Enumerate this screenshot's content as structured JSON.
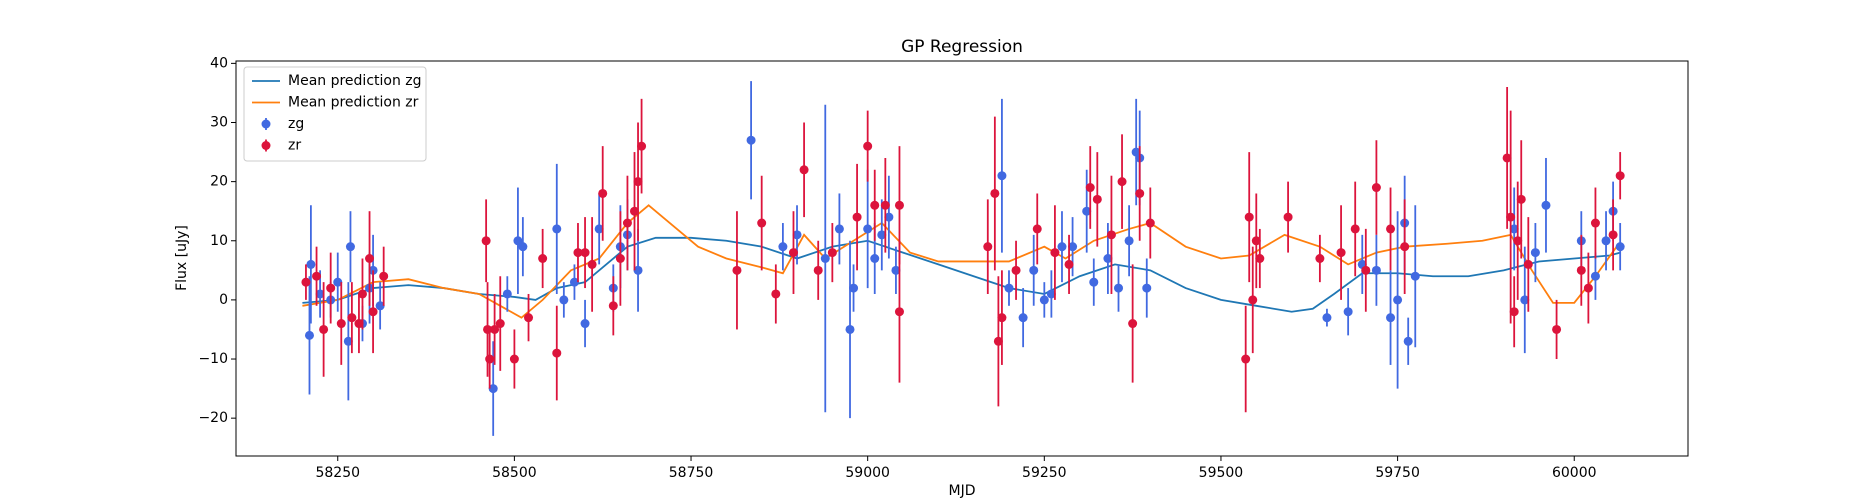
{
  "chart_data": {
    "type": "scatter",
    "title": "GP Regression",
    "x_label": "MJD",
    "y_label": "Flux [uJy]",
    "xlim": [
      58106,
      60161
    ],
    "ylim": [
      -26.4,
      40.4
    ],
    "xticks": [
      58250,
      58500,
      58750,
      59000,
      59250,
      59500,
      59750,
      60000
    ],
    "yticks": [
      {
        "value": -20,
        "label": "−20"
      },
      {
        "value": -10,
        "label": "−10"
      },
      0,
      10,
      20,
      30,
      40
    ],
    "legend": "upper left",
    "series": [
      {
        "name": "Mean prediction zg",
        "style": "line",
        "color": "#1f77b4",
        "x": [
          58200,
          58250,
          58300,
          58350,
          58400,
          58450,
          58500,
          58530,
          58560,
          58600,
          58630,
          58660,
          58700,
          58750,
          58800,
          58850,
          58900,
          58950,
          59000,
          59050,
          59100,
          59150,
          59200,
          59250,
          59300,
          59350,
          59400,
          59450,
          59500,
          59550,
          59600,
          59630,
          59660,
          59700,
          59750,
          59800,
          59850,
          59900,
          59950,
          60000,
          60050,
          60065
        ],
        "values": [
          -0.5,
          0,
          2,
          2.5,
          2,
          1,
          0.5,
          0,
          2,
          3,
          6,
          9,
          10.5,
          10.5,
          10,
          9,
          7,
          9,
          10,
          8,
          6,
          4,
          2,
          1,
          4,
          6,
          5,
          2,
          0,
          -1,
          -2,
          -1.5,
          1,
          4.5,
          4.5,
          4,
          4,
          5,
          6.5,
          7,
          7.5,
          8
        ]
      },
      {
        "name": "Mean prediction zr",
        "style": "line",
        "color": "#ff7f0e",
        "x": [
          58200,
          58250,
          58300,
          58350,
          58400,
          58450,
          58480,
          58510,
          58540,
          58580,
          58620,
          58660,
          58690,
          58720,
          58760,
          58800,
          58850,
          58880,
          58910,
          58940,
          58980,
          59020,
          59060,
          59100,
          59150,
          59200,
          59250,
          59280,
          59320,
          59370,
          59400,
          59450,
          59500,
          59540,
          59590,
          59640,
          59680,
          59720,
          59760,
          59820,
          59870,
          59910,
          59940,
          59970,
          60000,
          60030,
          60060
        ],
        "values": [
          -1,
          0,
          3,
          3.5,
          2,
          1,
          -1,
          -3,
          0,
          5,
          7,
          13,
          16,
          13,
          9,
          7,
          5.5,
          4.5,
          11,
          7,
          10,
          13,
          8,
          6.5,
          6.5,
          6.5,
          9,
          7,
          10,
          12,
          13,
          9,
          7,
          7.5,
          11,
          9,
          6,
          8,
          9,
          9.5,
          10,
          11,
          5,
          -0.5,
          -0.5,
          4,
          9
        ]
      },
      {
        "name": "zg",
        "style": "errorbar",
        "color": "#4169e1",
        "x": [
          58210,
          58212,
          58225,
          58240,
          58250,
          58265,
          58268,
          58285,
          58295,
          58300,
          58310,
          58470,
          58490,
          58505,
          58512,
          58560,
          58570,
          58585,
          58600,
          58620,
          58640,
          58650,
          58660,
          58675,
          58835,
          58880,
          58900,
          58940,
          58960,
          58975,
          58980,
          59000,
          59010,
          59020,
          59030,
          59040,
          59190,
          59200,
          59220,
          59235,
          59250,
          59260,
          59275,
          59290,
          59310,
          59320,
          59340,
          59355,
          59370,
          59380,
          59385,
          59395,
          59650,
          59680,
          59700,
          59720,
          59740,
          59750,
          59760,
          59765,
          59775,
          59915,
          59930,
          59945,
          59960,
          60010,
          60030,
          60045,
          60055,
          60065
        ],
        "values": [
          -6,
          6,
          1,
          0,
          3,
          -7,
          9,
          -4,
          2,
          5,
          -1,
          -15,
          1,
          10,
          9,
          12,
          0,
          3,
          -4,
          12,
          2,
          9,
          11,
          5,
          27,
          9,
          11,
          7,
          12,
          -5,
          2,
          12,
          7,
          11,
          14,
          5,
          21,
          2,
          -3,
          5,
          0,
          1,
          9,
          9,
          15,
          3,
          7,
          2,
          10,
          25,
          24,
          2,
          -3,
          -2,
          6,
          5,
          -3,
          0,
          13,
          -7,
          4,
          12,
          0,
          8,
          16,
          10,
          4,
          10,
          15,
          9
        ],
        "errors": [
          10,
          10,
          4,
          3,
          5,
          10,
          6,
          3,
          6,
          6,
          4,
          8,
          3,
          9,
          5,
          11,
          3,
          3,
          4,
          6,
          4,
          7,
          6,
          7,
          10,
          4,
          5,
          26,
          6,
          15,
          4,
          10,
          6,
          6,
          7,
          4,
          13,
          3,
          5,
          6,
          3,
          4,
          6,
          5,
          7,
          4,
          6,
          4,
          6,
          9,
          8,
          5,
          1.5,
          4,
          5,
          6,
          8,
          15,
          8,
          4,
          12,
          7,
          9,
          5,
          8,
          5,
          4,
          5,
          5,
          4
        ]
      },
      {
        "name": "zr",
        "style": "errorbar",
        "color": "#dc143c",
        "x": [
          58205,
          58220,
          58230,
          58240,
          58255,
          58270,
          58280,
          58285,
          58295,
          58300,
          58315,
          58460,
          58462,
          58465,
          58472,
          58480,
          58500,
          58520,
          58540,
          58560,
          58590,
          58600,
          58610,
          58625,
          58640,
          58650,
          58660,
          58670,
          58675,
          58680,
          58815,
          58850,
          58870,
          58895,
          58910,
          58930,
          58950,
          58985,
          59000,
          59010,
          59025,
          59045,
          59045,
          59170,
          59180,
          59185,
          59190,
          59210,
          59240,
          59265,
          59285,
          59315,
          59325,
          59345,
          59360,
          59375,
          59385,
          59400,
          59535,
          59540,
          59545,
          59550,
          59555,
          59595,
          59640,
          59670,
          59690,
          59705,
          59720,
          59740,
          59760,
          59905,
          59910,
          59915,
          59920,
          59925,
          59935,
          59975,
          60010,
          60020,
          60030,
          60055,
          60065
        ],
        "values": [
          3,
          4,
          -5,
          2,
          -4,
          -3,
          -4,
          1,
          7,
          -2,
          4,
          10,
          -5,
          -10,
          -5,
          -4,
          -10,
          -3,
          7,
          -9,
          8,
          8,
          6,
          18,
          -1,
          7,
          13,
          15,
          20,
          26,
          5,
          13,
          1,
          8,
          22,
          5,
          8,
          14,
          26,
          16,
          16,
          -2,
          16,
          9,
          18,
          -7,
          -3,
          5,
          12,
          8,
          6,
          19,
          17,
          11,
          20,
          -4,
          18,
          13,
          -10,
          14,
          0,
          10,
          7,
          14,
          7,
          8,
          12,
          5,
          19,
          12,
          9,
          24,
          14,
          -2,
          10,
          17,
          6,
          -5,
          5,
          2,
          13,
          11,
          21
        ],
        "errors": [
          3,
          5,
          8,
          6,
          7,
          6,
          5,
          6,
          8,
          7,
          5,
          7,
          8,
          5,
          6,
          8,
          5,
          4,
          5,
          8,
          5,
          6,
          8,
          8,
          5,
          8,
          8,
          10,
          10,
          8,
          10,
          8,
          5,
          7,
          8,
          5,
          5,
          9,
          6,
          6,
          8,
          12,
          10,
          8,
          13,
          11,
          8,
          5,
          6,
          8,
          5,
          7,
          8,
          10,
          8,
          10,
          8,
          6,
          9,
          11,
          9,
          8,
          5,
          6,
          4,
          8,
          8,
          7,
          8,
          7,
          8,
          12,
          18,
          6,
          10,
          10,
          8,
          5,
          6,
          6,
          6,
          6,
          4
        ]
      }
    ]
  }
}
